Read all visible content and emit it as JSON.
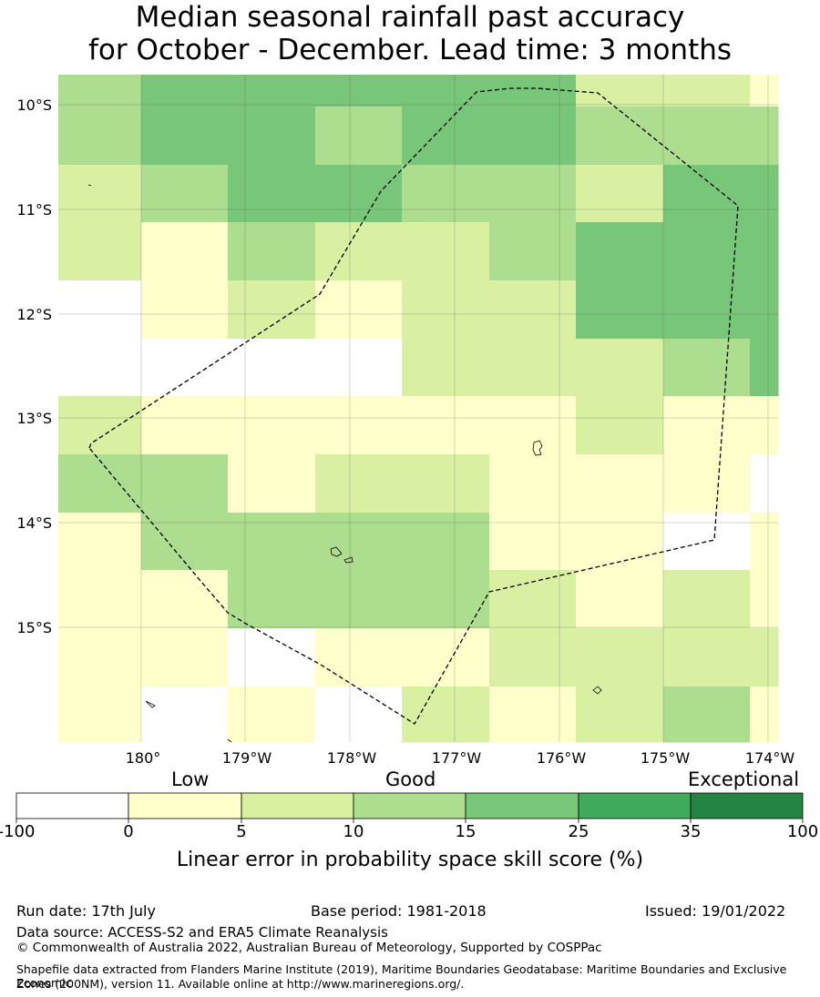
{
  "title_line1": "Median seasonal rainfall past accuracy",
  "title_line2": "for October - December. Lead time: 3 months",
  "map": {
    "lat_labels": [
      "10°S",
      "11°S",
      "12°S",
      "13°S",
      "14°S",
      "15°S"
    ],
    "lon_labels": [
      "180°",
      "179°W",
      "178°W",
      "177°W",
      "176°W",
      "175°W",
      "174°W"
    ],
    "grid": [
      [
        3,
        4,
        4,
        4,
        4,
        4,
        2,
        2,
        1
      ],
      [
        3,
        4,
        4,
        3,
        4,
        4,
        3,
        3,
        3
      ],
      [
        2,
        3,
        4,
        4,
        3,
        3,
        2,
        4,
        4
      ],
      [
        2,
        1,
        3,
        2,
        2,
        3,
        4,
        4,
        4
      ],
      [
        0,
        1,
        2,
        1,
        2,
        2,
        4,
        4,
        4
      ],
      [
        0,
        0,
        0,
        0,
        2,
        2,
        2,
        3,
        4
      ],
      [
        2,
        1,
        1,
        1,
        1,
        1,
        2,
        1,
        1
      ],
      [
        3,
        3,
        1,
        2,
        2,
        1,
        1,
        1,
        0
      ],
      [
        1,
        3,
        3,
        3,
        3,
        1,
        1,
        0,
        1
      ],
      [
        1,
        1,
        3,
        3,
        3,
        2,
        1,
        2,
        1
      ],
      [
        1,
        1,
        0,
        1,
        1,
        2,
        2,
        2,
        2
      ],
      [
        1,
        0,
        1,
        0,
        2,
        1,
        2,
        3,
        1
      ]
    ],
    "bin_colors": [
      "#ffffff",
      "#ffffcc",
      "#d9f0a3",
      "#addd8e",
      "#78c679",
      "#41ab5d",
      "#238443"
    ]
  },
  "legend": {
    "category_labels": [
      "Low",
      "Good",
      "Exceptional"
    ],
    "ticks": [
      "-100",
      "0",
      "5",
      "10",
      "15",
      "25",
      "35",
      "100"
    ],
    "title": "Linear error in probability space skill score (%)"
  },
  "footer": {
    "run_date": "Run date: 17th July",
    "base_period": "Base period: 1981-2018",
    "issued": "Issued: 19/01/2022",
    "data_source": "Data source: ACCESS-S2 and ERA5 Climate Reanalysis",
    "copyright": "© Commonwealth of Australia 2022, Australian Bureau of Meteorology, Supported by COSPPac",
    "shapefile_line1": "Shapefile data extracted from Flanders Marine Institute (2019), Maritime Boundaries Geodatabase: Maritime Boundaries and Exclusive Economic",
    "shapefile_line2": "Zones (200NM), version 11. Available online at http://www.marineregions.org/."
  }
}
